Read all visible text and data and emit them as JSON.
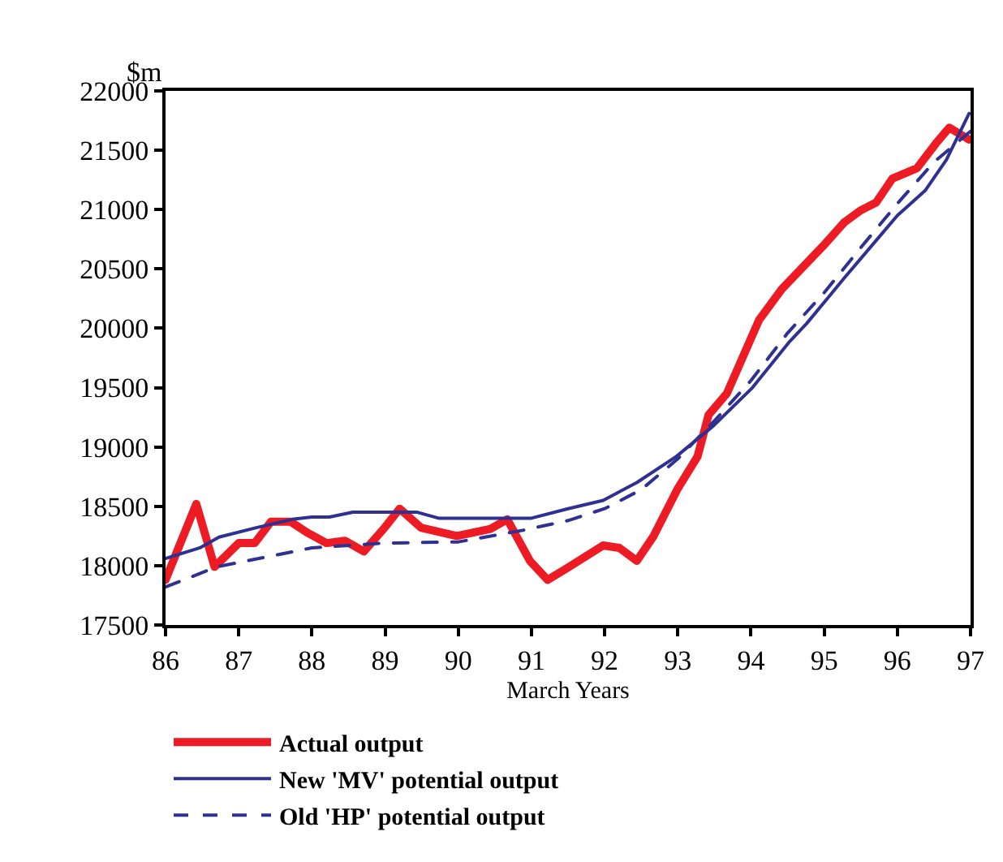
{
  "chart_data": {
    "type": "line",
    "ylabel": "$m",
    "xlabel": "March Years",
    "xlim": [
      86,
      97
    ],
    "xticks": [
      86,
      87,
      88,
      89,
      90,
      91,
      92,
      93,
      94,
      95,
      96,
      97
    ],
    "ylim": [
      17500,
      22000
    ],
    "yticks": [
      17500,
      18000,
      18500,
      19000,
      19500,
      20000,
      20500,
      21000,
      21500,
      22000
    ],
    "grid": false,
    "legend": "bottom",
    "marker": "none",
    "series": [
      {
        "name": "Actual output",
        "color": "#ed1c24",
        "line_style": "solid",
        "x": [
          86.0,
          86.42,
          86.67,
          87.0,
          87.22,
          87.44,
          87.71,
          87.93,
          88.2,
          88.45,
          88.71,
          88.98,
          89.2,
          89.49,
          89.98,
          90.44,
          90.67,
          90.98,
          91.22,
          91.49,
          91.98,
          92.2,
          92.44,
          92.67,
          93.0,
          93.27,
          93.42,
          93.67,
          93.89,
          94.11,
          94.42,
          94.98,
          95.27,
          95.49,
          95.71,
          95.93,
          96.27,
          96.53,
          96.71,
          96.98
        ],
        "values": [
          17880,
          18520,
          17990,
          18190,
          18190,
          18370,
          18370,
          18280,
          18190,
          18210,
          18120,
          18310,
          18480,
          18320,
          18250,
          18310,
          18390,
          18040,
          17880,
          17980,
          18170,
          18150,
          18040,
          18250,
          18650,
          18920,
          19270,
          19450,
          19760,
          20070,
          20330,
          20690,
          20890,
          20990,
          21060,
          21260,
          21350,
          21560,
          21690,
          21590
        ]
      },
      {
        "name": "New 'MV' potential output",
        "color": "#2e3192",
        "line_style": "solid",
        "x": [
          86.0,
          86.47,
          86.73,
          87.24,
          87.73,
          88.0,
          88.24,
          88.56,
          89.44,
          89.73,
          91.0,
          91.5,
          91.98,
          92.44,
          92.98,
          93.49,
          94.02,
          94.53,
          94.76,
          95.27,
          95.78,
          96.0,
          96.38,
          96.67,
          96.98
        ],
        "values": [
          18060,
          18150,
          18240,
          18320,
          18390,
          18410,
          18410,
          18450,
          18450,
          18400,
          18400,
          18480,
          18550,
          18700,
          18920,
          19180,
          19500,
          19890,
          20040,
          20420,
          20790,
          20950,
          21160,
          21420,
          21810
        ]
      },
      {
        "name": "Old 'HP' potential output",
        "color": "#2e3192",
        "line_style": "dashed",
        "x": [
          86.0,
          86.7,
          88.0,
          89.0,
          90.0,
          90.9,
          91.5,
          92.0,
          92.5,
          93.0,
          93.5,
          94.0,
          94.5,
          95.0,
          95.5,
          96.0,
          96.5,
          97.0
        ],
        "values": [
          17820,
          17990,
          18150,
          18190,
          18200,
          18300,
          18380,
          18480,
          18640,
          18900,
          19220,
          19560,
          19960,
          20300,
          20680,
          21050,
          21400,
          21660
        ]
      }
    ]
  }
}
